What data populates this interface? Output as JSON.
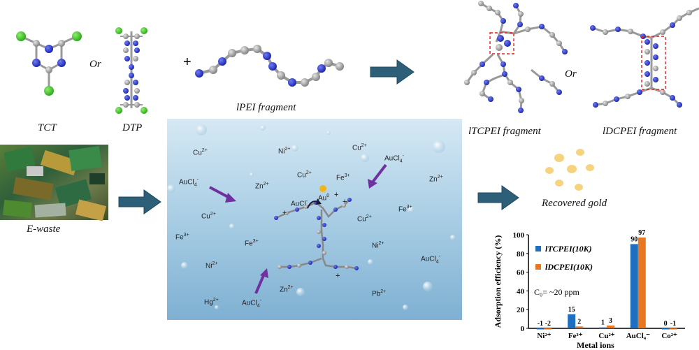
{
  "labels": {
    "tct": "TCT",
    "or1": "Or",
    "dtp": "DTP",
    "plus": "+",
    "lpei": "lPEI fragment",
    "or2": "Or",
    "ltcpei": "lTCPEI fragment",
    "ldcpei": "lDCPEI fragment",
    "ewaste": "E-waste",
    "gold": "Recovered gold"
  },
  "ions": [
    {
      "text": "Cu",
      "sup": "2+",
      "sub": ""
    },
    {
      "text": "Ni",
      "sup": "2+",
      "sub": ""
    },
    {
      "text": "Cu",
      "sup": "2+",
      "sub": ""
    },
    {
      "text": "AuCl",
      "sup": "-",
      "sub": "4"
    },
    {
      "text": "Cu",
      "sup": "2+",
      "sub": ""
    },
    {
      "text": "Fe",
      "sup": "3+",
      "sub": ""
    },
    {
      "text": "AuCl",
      "sup": "-",
      "sub": "4"
    },
    {
      "text": "Zn",
      "sup": "2+",
      "sub": ""
    },
    {
      "text": "Zn",
      "sup": "2+",
      "sub": ""
    },
    {
      "text": "Cu",
      "sup": "2+",
      "sub": ""
    },
    {
      "text": "Fe",
      "sup": "3+",
      "sub": ""
    },
    {
      "text": "Cu",
      "sup": "2+",
      "sub": ""
    },
    {
      "text": "Fe",
      "sup": "3+",
      "sub": ""
    },
    {
      "text": "Fe",
      "sup": "3+",
      "sub": ""
    },
    {
      "text": "Ni",
      "sup": "2+",
      "sub": ""
    },
    {
      "text": "Ni",
      "sup": "2+",
      "sub": ""
    },
    {
      "text": "AuCl",
      "sup": "-",
      "sub": "4"
    },
    {
      "text": "Zn",
      "sup": "2+",
      "sub": ""
    },
    {
      "text": "Hg",
      "sup": "2+",
      "sub": ""
    },
    {
      "text": "AuCl",
      "sup": "-",
      "sub": "4"
    },
    {
      "text": "Pb",
      "sup": "2+",
      "sub": ""
    },
    {
      "text": "AuCl",
      "sup": "-",
      "sub": ""
    },
    {
      "text": "Au",
      "sup": "0",
      "sub": ""
    }
  ],
  "chart_data": {
    "type": "bar",
    "categories": [
      "Ni²⁺",
      "Fe³⁺",
      "Cu²⁺",
      "AuCl₄⁻",
      "Co²⁺"
    ],
    "series": [
      {
        "name": "lTCPEI(10K)",
        "values": [
          -1,
          15,
          1,
          90,
          0
        ],
        "color": "#1f6fc0"
      },
      {
        "name": "lDCPEI(10K)",
        "values": [
          -2,
          2,
          3,
          97,
          -1
        ],
        "color": "#e87722"
      }
    ],
    "ylabel": "Adsorption efficiency (%)",
    "xlabel": "Metal ions",
    "yticks": [
      0,
      20,
      40,
      60,
      80,
      100
    ],
    "ylim": [
      0,
      100
    ],
    "annotation": "C₀= ~20 ppm",
    "legend_position": "center-left"
  }
}
